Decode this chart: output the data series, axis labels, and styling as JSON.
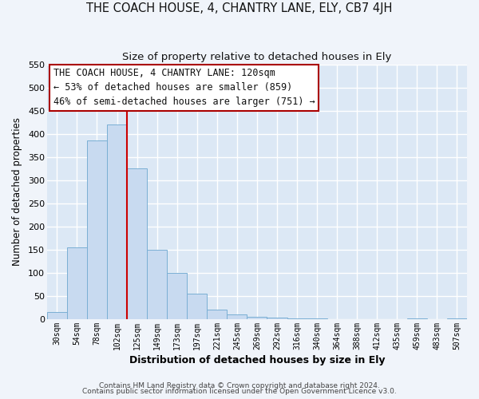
{
  "title1": "THE COACH HOUSE, 4, CHANTRY LANE, ELY, CB7 4JH",
  "title2": "Size of property relative to detached houses in Ely",
  "xlabel": "Distribution of detached houses by size in Ely",
  "ylabel": "Number of detached properties",
  "bar_labels": [
    "30sqm",
    "54sqm",
    "78sqm",
    "102sqm",
    "125sqm",
    "149sqm",
    "173sqm",
    "197sqm",
    "221sqm",
    "245sqm",
    "269sqm",
    "292sqm",
    "316sqm",
    "340sqm",
    "364sqm",
    "388sqm",
    "412sqm",
    "435sqm",
    "459sqm",
    "483sqm",
    "507sqm"
  ],
  "bar_values": [
    15,
    155,
    385,
    420,
    325,
    150,
    100,
    55,
    20,
    10,
    5,
    2,
    1,
    1,
    0,
    0,
    0,
    0,
    1,
    0,
    1
  ],
  "bar_color": "#c8daf0",
  "bar_edge_color": "#7aafd4",
  "vline_color": "#cc0000",
  "annotation_title": "THE COACH HOUSE, 4 CHANTRY LANE: 120sqm",
  "annotation_line1": "← 53% of detached houses are smaller (859)",
  "annotation_line2": "46% of semi-detached houses are larger (751) →",
  "annotation_box_color": "#ffffff",
  "annotation_box_edge": "#aa0000",
  "ylim": [
    0,
    550
  ],
  "yticks": [
    0,
    50,
    100,
    150,
    200,
    250,
    300,
    350,
    400,
    450,
    500,
    550
  ],
  "footer1": "Contains HM Land Registry data © Crown copyright and database right 2024.",
  "footer2": "Contains public sector information licensed under the Open Government Licence v3.0.",
  "fig_bg_color": "#f0f4fa",
  "plot_bg_color": "#dce8f5",
  "grid_color": "#ffffff",
  "title1_fontsize": 10.5,
  "title2_fontsize": 9.5,
  "annotation_fontsize": 8.5
}
